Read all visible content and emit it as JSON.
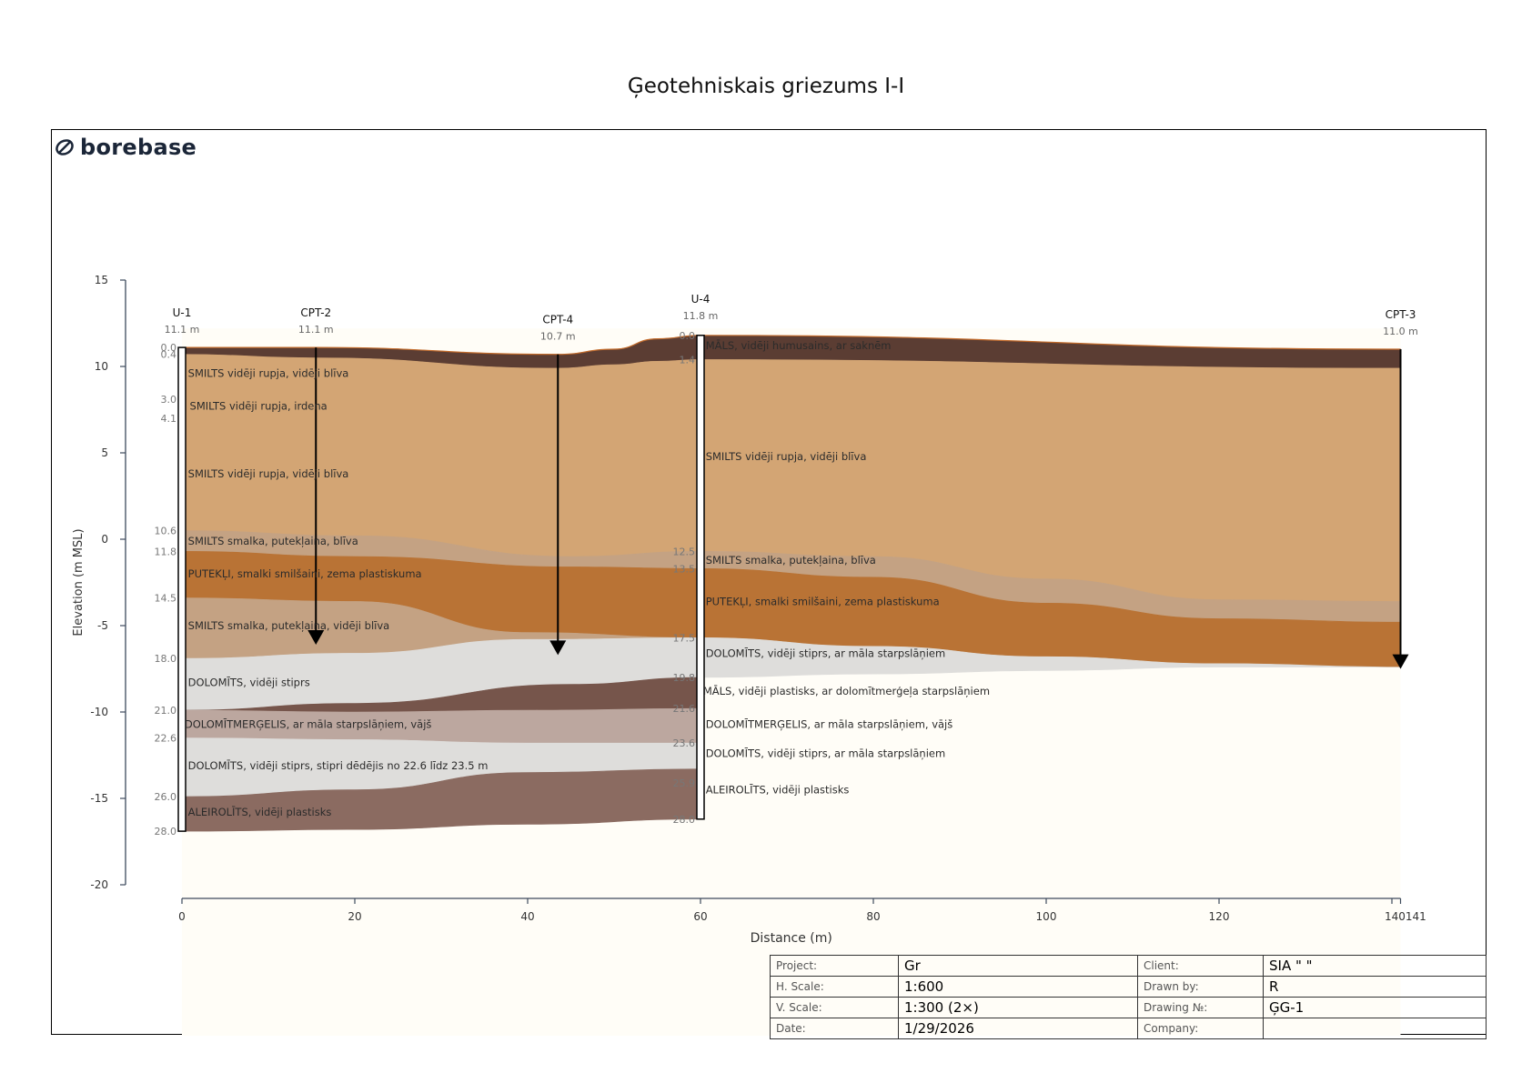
{
  "title": "Ģeotehniskais griezums I-I",
  "logo": {
    "text": "borebase"
  },
  "axes": {
    "ylabel": "Elevation (m MSL)",
    "xlabel": "Distance (m)",
    "yticks": [
      "15",
      "10",
      "5",
      "0",
      "-5",
      "-10",
      "-15",
      "-20"
    ],
    "xticks": [
      "0",
      "20",
      "40",
      "60",
      "80",
      "100",
      "120",
      "140141"
    ]
  },
  "chart_data": {
    "type": "geotechnical-section",
    "xlim": [
      0,
      141
    ],
    "ylim": [
      -20,
      15
    ],
    "vertical_exaggeration": "2×",
    "boreholes": [
      {
        "name": "U-1",
        "elevation_label": "11.1 m",
        "x": 0,
        "top": 11.1,
        "depth": 28.0,
        "kind": "borehole",
        "depth_labels": [
          "0.0",
          "0.4",
          "3.0",
          "4.1",
          "10.6",
          "11.8",
          "14.5",
          "18.0",
          "21.0",
          "22.6",
          "26.0",
          "28.0"
        ]
      },
      {
        "name": "CPT-2",
        "elevation_label": "11.1 m",
        "x": 15.5,
        "top": 11.1,
        "bottom": -6.0,
        "kind": "cpt"
      },
      {
        "name": "CPT-4",
        "elevation_label": "10.7 m",
        "x": 43.5,
        "top": 10.7,
        "bottom": -6.6,
        "kind": "cpt"
      },
      {
        "name": "U-4",
        "elevation_label": "11.8 m",
        "x": 60,
        "top": 11.8,
        "depth": 28.0,
        "kind": "borehole",
        "depth_labels": [
          "0.0",
          "1.4",
          "12.5",
          "13.5",
          "17.5",
          "19.8",
          "21.6",
          "23.6",
          "25.9",
          "28.0"
        ]
      },
      {
        "name": "CPT-3",
        "elevation_label": "11.0 m",
        "x": 141,
        "top": 11.0,
        "bottom": -7.4,
        "kind": "cpt"
      }
    ],
    "layers": [
      {
        "id": "topsoil",
        "color": "#5b3d33",
        "top": [
          [
            0,
            11.1
          ],
          [
            15.5,
            11.1
          ],
          [
            43.5,
            10.7
          ],
          [
            50,
            11.0
          ],
          [
            55,
            11.6
          ],
          [
            60,
            11.8
          ],
          [
            141,
            11.0
          ]
        ],
        "bottom": [
          [
            0,
            10.7
          ],
          [
            15.5,
            10.5
          ],
          [
            43.5,
            9.9
          ],
          [
            50,
            10.1
          ],
          [
            55,
            10.3
          ],
          [
            60,
            10.4
          ],
          [
            141,
            9.9
          ]
        ]
      },
      {
        "id": "sand-medium",
        "color": "#d3a574",
        "top": [
          [
            0,
            10.7
          ],
          [
            15.5,
            10.5
          ],
          [
            43.5,
            9.9
          ],
          [
            50,
            10.1
          ],
          [
            55,
            10.3
          ],
          [
            60,
            10.4
          ],
          [
            141,
            9.9
          ]
        ],
        "bottom": [
          [
            0,
            0.5
          ],
          [
            20,
            0.2
          ],
          [
            45,
            -1.0
          ],
          [
            60,
            -0.7
          ],
          [
            80,
            -1.0
          ],
          [
            100,
            -2.3
          ],
          [
            120,
            -3.5
          ],
          [
            141,
            -3.6
          ]
        ]
      },
      {
        "id": "sand-fine",
        "color": "#c4a283",
        "top": [
          [
            0,
            0.5
          ],
          [
            20,
            0.2
          ],
          [
            45,
            -1.0
          ],
          [
            60,
            -0.7
          ],
          [
            80,
            -1.0
          ],
          [
            100,
            -2.3
          ],
          [
            120,
            -3.5
          ],
          [
            141,
            -3.6
          ]
        ],
        "bottom": [
          [
            0,
            -0.7
          ],
          [
            20,
            -1.0
          ],
          [
            45,
            -1.6
          ],
          [
            60,
            -1.7
          ],
          [
            80,
            -2.2
          ],
          [
            100,
            -3.7
          ],
          [
            120,
            -4.6
          ],
          [
            141,
            -4.8
          ]
        ]
      },
      {
        "id": "silt",
        "color": "#b97335",
        "top": [
          [
            0,
            -0.7
          ],
          [
            20,
            -1.0
          ],
          [
            45,
            -1.6
          ],
          [
            60,
            -1.7
          ],
          [
            80,
            -2.2
          ],
          [
            100,
            -3.7
          ],
          [
            120,
            -4.6
          ],
          [
            141,
            -4.8
          ]
        ],
        "bottom": [
          [
            0,
            -3.4
          ],
          [
            20,
            -3.6
          ],
          [
            40,
            -5.4
          ],
          [
            60,
            -5.7
          ],
          [
            80,
            -6.2
          ],
          [
            100,
            -6.8
          ],
          [
            120,
            -7.2
          ],
          [
            141,
            -7.4
          ]
        ]
      },
      {
        "id": "sand-fine-lower",
        "color": "#c4a283",
        "top": [
          [
            0,
            -3.4
          ],
          [
            20,
            -3.6
          ],
          [
            40,
            -5.4
          ],
          [
            60,
            -5.7
          ]
        ],
        "bottom": [
          [
            0,
            -6.9
          ],
          [
            20,
            -6.6
          ],
          [
            40,
            -5.8
          ],
          [
            60,
            -5.7
          ]
        ]
      },
      {
        "id": "dolomite-upper",
        "color": "#dedddb",
        "top": [
          [
            0,
            -6.9
          ],
          [
            20,
            -6.6
          ],
          [
            40,
            -5.8
          ],
          [
            60,
            -5.7
          ],
          [
            80,
            -6.2
          ],
          [
            100,
            -6.8
          ],
          [
            120,
            -7.2
          ],
          [
            141,
            -7.4
          ]
        ],
        "bottom": [
          [
            0,
            -9.9
          ],
          [
            20,
            -9.5
          ],
          [
            45,
            -8.4
          ],
          [
            60,
            -8.0
          ],
          [
            80,
            -7.8
          ],
          [
            100,
            -7.6
          ],
          [
            120,
            -7.4
          ],
          [
            141,
            -7.4
          ]
        ]
      },
      {
        "id": "clay",
        "color": "#76554b",
        "top": [
          [
            0,
            -9.9
          ],
          [
            20,
            -9.5
          ],
          [
            45,
            -8.4
          ],
          [
            60,
            -8.0
          ]
        ],
        "bottom": [
          [
            0,
            -9.9
          ],
          [
            20,
            -10.0
          ],
          [
            40,
            -9.9
          ],
          [
            60,
            -9.8
          ]
        ]
      },
      {
        "id": "marl",
        "color": "#bca79f",
        "top": [
          [
            0,
            -9.9
          ],
          [
            20,
            -10.0
          ],
          [
            40,
            -9.9
          ],
          [
            60,
            -9.8
          ]
        ],
        "bottom": [
          [
            0,
            -11.5
          ],
          [
            20,
            -11.6
          ],
          [
            40,
            -11.8
          ],
          [
            60,
            -11.8
          ]
        ]
      },
      {
        "id": "dolomite-lower",
        "color": "#dedddb",
        "top": [
          [
            0,
            -11.5
          ],
          [
            20,
            -11.6
          ],
          [
            40,
            -11.8
          ],
          [
            60,
            -11.8
          ]
        ],
        "bottom": [
          [
            0,
            -14.9
          ],
          [
            20,
            -14.5
          ],
          [
            40,
            -13.5
          ],
          [
            60,
            -13.3
          ]
        ]
      },
      {
        "id": "siltstone",
        "color": "#8b6b61",
        "top": [
          [
            0,
            -14.9
          ],
          [
            20,
            -14.5
          ],
          [
            40,
            -13.5
          ],
          [
            60,
            -13.3
          ]
        ],
        "bottom": [
          [
            0,
            -16.9
          ],
          [
            20,
            -16.8
          ],
          [
            40,
            -16.5
          ],
          [
            60,
            -16.2
          ]
        ]
      }
    ],
    "labels": [
      {
        "text": "SMILTS vidēji rupja, vidēji blīva",
        "x": 0.7,
        "y": 9.6
      },
      {
        "text": "SMILTS vidēji rupja, irdena",
        "x": 0.9,
        "y": 7.7
      },
      {
        "text": "SMILTS vidēji rupja, vidēji blīva",
        "x": 0.7,
        "y": 3.8
      },
      {
        "text": "SMILTS smalka, putekļaina, blīva",
        "x": 0.7,
        "y": -0.1
      },
      {
        "text": "PUTEKĻI, smalki smilšaini, zema plastiskuma",
        "x": 0.7,
        "y": -2.0
      },
      {
        "text": "SMILTS smalka, putekļaina, vidēji blīva",
        "x": 0.7,
        "y": -5.0
      },
      {
        "text": "DOLOMĪTS, vidēji stiprs",
        "x": 0.7,
        "y": -8.3
      },
      {
        "text": "DOLOMĪTMERĢELIS, ar māla starpslāņiem, vājš",
        "x": 0.3,
        "y": -10.7
      },
      {
        "text": "DOLOMĪTS, vidēji stiprs, stipri dēdējis no 22.6 līdz 23.5 m",
        "x": 0.7,
        "y": -13.1
      },
      {
        "text": "ALEIROLĪTS, vidēji plastisks",
        "x": 0.7,
        "y": -15.8
      },
      {
        "text": "MĀLS, vidēji humusains, ar saknēm",
        "x": 60.6,
        "y": 11.2
      },
      {
        "text": "SMILTS vidēji rupja, vidēji blīva",
        "x": 60.6,
        "y": 4.8
      },
      {
        "text": "SMILTS smalka, putekļaina, blīva",
        "x": 60.6,
        "y": -1.2
      },
      {
        "text": "PUTEKĻI, smalki smilšaini, zema plastiskuma",
        "x": 60.6,
        "y": -3.6
      },
      {
        "text": "DOLOMĪTS, vidēji stiprs, ar māla starpslāņiem",
        "x": 60.6,
        "y": -6.6
      },
      {
        "text": "MĀLS, vidēji plastisks, ar dolomītmerģeļa starpslāņiem",
        "x": 60.3,
        "y": -8.8
      },
      {
        "text": "DOLOMĪTMERĢELIS, ar māla starpslāņiem, vājš",
        "x": 60.6,
        "y": -10.7
      },
      {
        "text": "DOLOMĪTS, vidēji stiprs, ar māla starpslāņiem",
        "x": 60.6,
        "y": -12.4
      },
      {
        "text": "ALEIROLĪTS, vidēji plastisks",
        "x": 60.6,
        "y": -14.5
      }
    ]
  },
  "title_block": {
    "project_label": "Project:",
    "project_value": "Gr",
    "client_label": "Client:",
    "client_value": "SIA \"            \"",
    "hscale_label": "H. Scale:",
    "hscale_value": "1:600",
    "drawnby_label": "Drawn by:",
    "drawnby_value": "R",
    "vscale_label": "V. Scale:",
    "vscale_value": "1:300 (2×)",
    "drawingno_label": "Drawing №:",
    "drawingno_value": "ĢG-1",
    "date_label": "Date:",
    "date_value": "1/29/2026",
    "company_label": "Company:",
    "company_value": ""
  },
  "colors": {
    "background_fill": "#fffdf7",
    "axis": "#3d4a5c",
    "label_text": "#2b2b2b",
    "depth_label": "#777777"
  }
}
